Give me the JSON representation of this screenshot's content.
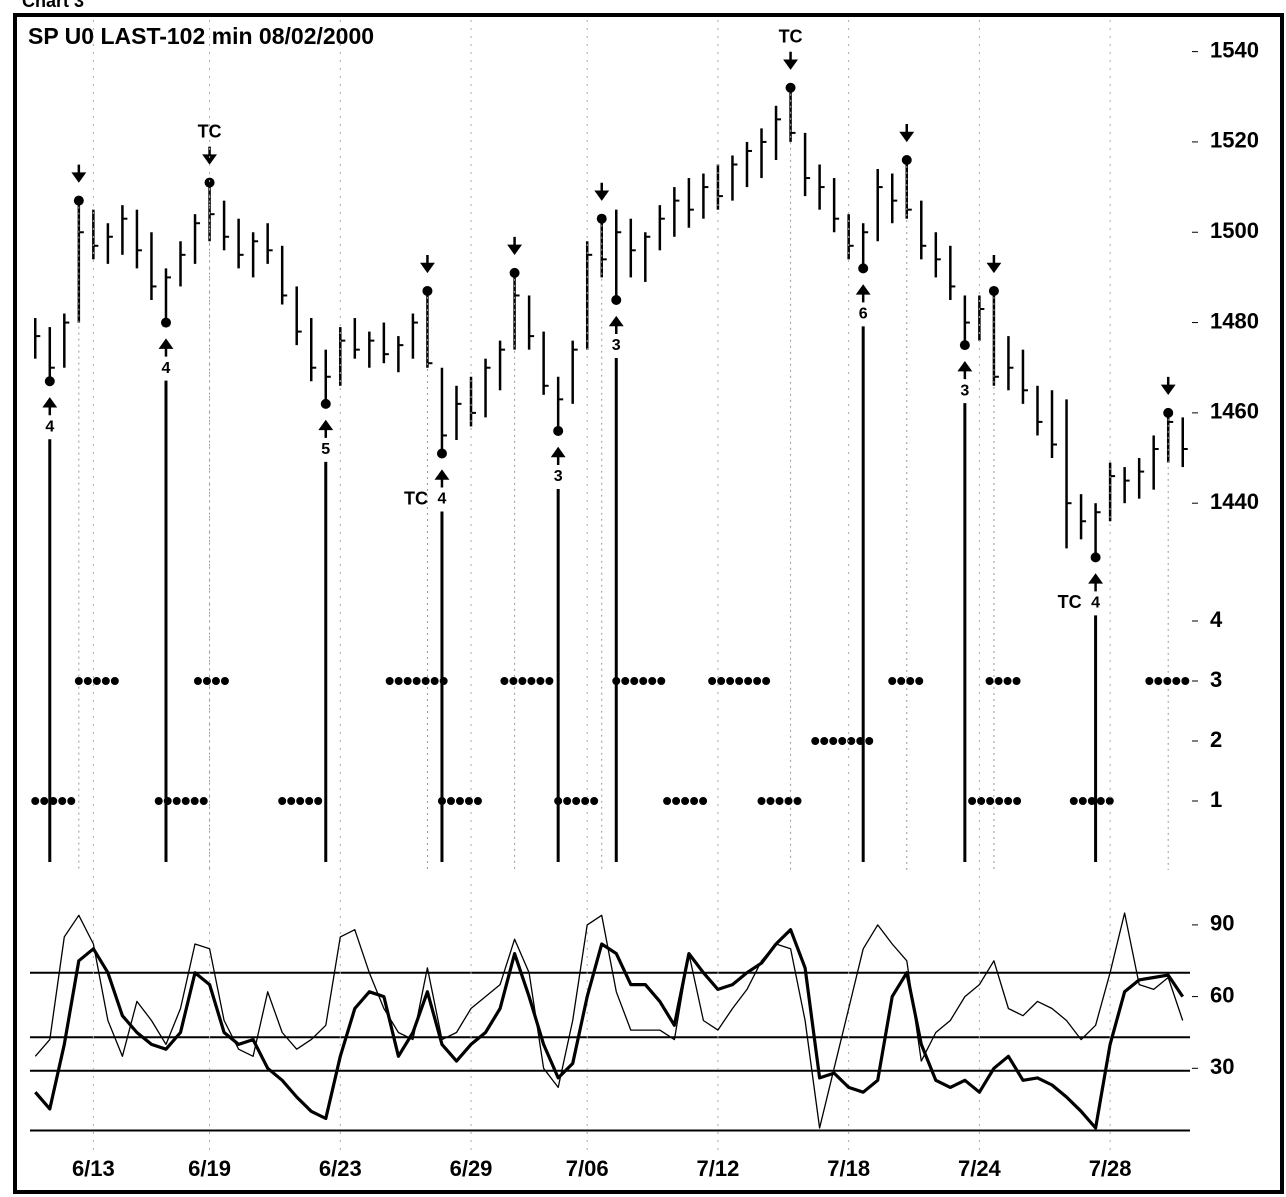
{
  "caption": "Chart 3",
  "chart_data": [
    {
      "type": "ohlc",
      "title": "SP U0 LAST-102 min   08/02/2000",
      "color": "#000000",
      "xlim": [
        -0.5,
        79.5
      ],
      "ylim": [
        1421,
        1547
      ],
      "yticks": [
        1440,
        1460,
        1480,
        1500,
        1520,
        1540
      ],
      "high": [
        1481,
        1479,
        1482,
        1507,
        1505,
        1502,
        1506,
        1505,
        1500,
        1492,
        1498,
        1504,
        1511,
        1507,
        1503,
        1500,
        1502,
        1497,
        1488,
        1481,
        1474,
        1479,
        1481,
        1478,
        1480,
        1477,
        1482,
        1487,
        1470,
        1466,
        1468,
        1472,
        1476,
        1491,
        1486,
        1478,
        1468,
        1476,
        1498,
        1503,
        1505,
        1503,
        1500,
        1506,
        1510,
        1512,
        1513,
        1515,
        1517,
        1520,
        1523,
        1528,
        1532,
        1522,
        1515,
        1512,
        1504,
        1502,
        1514,
        1513,
        1516,
        1507,
        1500,
        1497,
        1486,
        1486,
        1487,
        1477,
        1474,
        1466,
        1465,
        1463,
        1442,
        1440,
        1449,
        1448,
        1450,
        1455,
        1460,
        1459
      ],
      "low": [
        1472,
        1467,
        1470,
        1480,
        1494,
        1493,
        1495,
        1492,
        1485,
        1480,
        1488,
        1493,
        1498,
        1496,
        1492,
        1490,
        1493,
        1484,
        1475,
        1467,
        1462,
        1466,
        1472,
        1470,
        1471,
        1469,
        1472,
        1470,
        1451,
        1454,
        1457,
        1459,
        1465,
        1474,
        1474,
        1464,
        1456,
        1462,
        1474,
        1490,
        1485,
        1490,
        1489,
        1496,
        1499,
        1501,
        1503,
        1505,
        1507,
        1510,
        1512,
        1516,
        1520,
        1508,
        1505,
        1500,
        1494,
        1492,
        1498,
        1502,
        1503,
        1494,
        1490,
        1485,
        1475,
        1476,
        1466,
        1465,
        1462,
        1455,
        1450,
        1430,
        1432,
        1428,
        1436,
        1440,
        1441,
        1443,
        1449,
        1448
      ],
      "close": [
        1477,
        1470,
        1480,
        1500,
        1497,
        1499,
        1503,
        1496,
        1488,
        1490,
        1495,
        1502,
        1504,
        1499,
        1495,
        1498,
        1496,
        1486,
        1478,
        1470,
        1468,
        1476,
        1474,
        1476,
        1473,
        1475,
        1480,
        1471,
        1455,
        1462,
        1460,
        1470,
        1474,
        1486,
        1477,
        1466,
        1463,
        1474,
        1495,
        1494,
        1500,
        1496,
        1499,
        1503,
        1507,
        1505,
        1510,
        1508,
        1515,
        1518,
        1520,
        1525,
        1522,
        1512,
        1510,
        1503,
        1497,
        1500,
        1510,
        1507,
        1505,
        1497,
        1494,
        1488,
        1480,
        1483,
        1468,
        1470,
        1465,
        1458,
        1453,
        1440,
        1436,
        1438,
        1446,
        1445,
        1447,
        1452,
        1458,
        1452
      ],
      "pivots": [
        {
          "x": 1,
          "dir": "up",
          "count": 4
        },
        {
          "x": 3,
          "dir": "down"
        },
        {
          "x": 9,
          "dir": "up",
          "count": 4
        },
        {
          "x": 12,
          "dir": "down",
          "note": "TC"
        },
        {
          "x": 20,
          "dir": "up",
          "count": 5
        },
        {
          "x": 27,
          "dir": "down"
        },
        {
          "x": 28,
          "dir": "up",
          "count": 4,
          "note": "TC"
        },
        {
          "x": 33,
          "dir": "down"
        },
        {
          "x": 36,
          "dir": "up",
          "count": 3
        },
        {
          "x": 39,
          "dir": "down"
        },
        {
          "x": 40,
          "dir": "up",
          "count": 3
        },
        {
          "x": 52,
          "dir": "down",
          "note": "TC"
        },
        {
          "x": 57,
          "dir": "up",
          "count": 6
        },
        {
          "x": 60,
          "dir": "down"
        },
        {
          "x": 64,
          "dir": "up",
          "count": 3
        },
        {
          "x": 66,
          "dir": "down"
        },
        {
          "x": 73,
          "dir": "up",
          "count": 4,
          "note": "TC"
        },
        {
          "x": 78,
          "dir": "down"
        }
      ]
    },
    {
      "type": "dots",
      "color": "#000000",
      "xlim": [
        -0.5,
        79.5
      ],
      "ylim": [
        -0.2,
        4.35
      ],
      "yticks": [
        1,
        2,
        3,
        4
      ],
      "segments": [
        {
          "from": 0,
          "to": 3,
          "value": 1
        },
        {
          "from": 8.5,
          "to": 12,
          "value": 1
        },
        {
          "from": 17,
          "to": 20,
          "value": 1
        },
        {
          "from": 28,
          "to": 31,
          "value": 1
        },
        {
          "from": 36,
          "to": 39,
          "value": 1
        },
        {
          "from": 43.5,
          "to": 46.5,
          "value": 1
        },
        {
          "from": 50,
          "to": 53,
          "value": 1
        },
        {
          "from": 64.5,
          "to": 68,
          "value": 1
        },
        {
          "from": 71.5,
          "to": 74.5,
          "value": 1
        },
        {
          "from": 3,
          "to": 5.5,
          "value": 3
        },
        {
          "from": 11.2,
          "to": 13.5,
          "value": 3
        },
        {
          "from": 24.4,
          "to": 28.5,
          "value": 3
        },
        {
          "from": 32.3,
          "to": 36,
          "value": 3
        },
        {
          "from": 40,
          "to": 43.7,
          "value": 3
        },
        {
          "from": 46.6,
          "to": 50.4,
          "value": 3
        },
        {
          "from": 59,
          "to": 61.3,
          "value": 3
        },
        {
          "from": 65.7,
          "to": 68.1,
          "value": 3
        },
        {
          "from": 76.7,
          "to": 79.5,
          "value": 3
        },
        {
          "from": 53.7,
          "to": 57.5,
          "value": 2
        }
      ]
    },
    {
      "type": "line",
      "xlim": [
        -0.5,
        79.5
      ],
      "ylim": [
        0,
        100
      ],
      "yticks": [
        30,
        60,
        90
      ],
      "hlines": [
        70,
        43,
        29,
        4
      ],
      "xticks": [
        {
          "value": 4,
          "label": "6/13"
        },
        {
          "value": 12,
          "label": "6/19"
        },
        {
          "value": 21,
          "label": "6/23"
        },
        {
          "value": 30,
          "label": "6/29"
        },
        {
          "value": 38,
          "label": "7/06"
        },
        {
          "value": 47,
          "label": "7/12"
        },
        {
          "value": 56,
          "label": "7/18"
        },
        {
          "value": 65,
          "label": "7/24"
        },
        {
          "value": 74,
          "label": "7/28"
        }
      ],
      "series": [
        {
          "color": "#000000",
          "width": 1.3,
          "values": [
            35,
            42,
            85,
            94,
            82,
            50,
            35,
            58,
            50,
            40,
            55,
            82,
            80,
            50,
            38,
            35,
            62,
            45,
            38,
            42,
            48,
            85,
            88,
            70,
            55,
            45,
            42,
            72,
            42,
            45,
            55,
            60,
            65,
            84,
            70,
            30,
            22,
            50,
            90,
            94,
            62,
            46,
            46,
            46,
            42,
            78,
            50,
            46,
            55,
            63,
            75,
            82,
            80,
            50,
            5,
            30,
            55,
            80,
            90,
            82,
            75,
            33,
            45,
            50,
            60,
            65,
            75,
            55,
            52,
            58,
            55,
            50,
            42,
            48,
            70,
            95,
            65,
            63,
            68,
            50
          ]
        },
        {
          "color": "#000000",
          "width": 3.2,
          "values": [
            20,
            13,
            40,
            75,
            80,
            70,
            52,
            45,
            40,
            38,
            45,
            70,
            65,
            45,
            40,
            42,
            30,
            25,
            18,
            12,
            9,
            35,
            55,
            62,
            60,
            35,
            45,
            62,
            40,
            33,
            40,
            45,
            55,
            78,
            60,
            40,
            26,
            32,
            60,
            82,
            78,
            65,
            65,
            58,
            48,
            78,
            70,
            63,
            65,
            70,
            74,
            82,
            88,
            72,
            26,
            28,
            22,
            20,
            25,
            60,
            70,
            40,
            25,
            22,
            25,
            20,
            30,
            35,
            25,
            26,
            23,
            18,
            12,
            5,
            40,
            62,
            67,
            68,
            69,
            60
          ]
        }
      ]
    }
  ]
}
